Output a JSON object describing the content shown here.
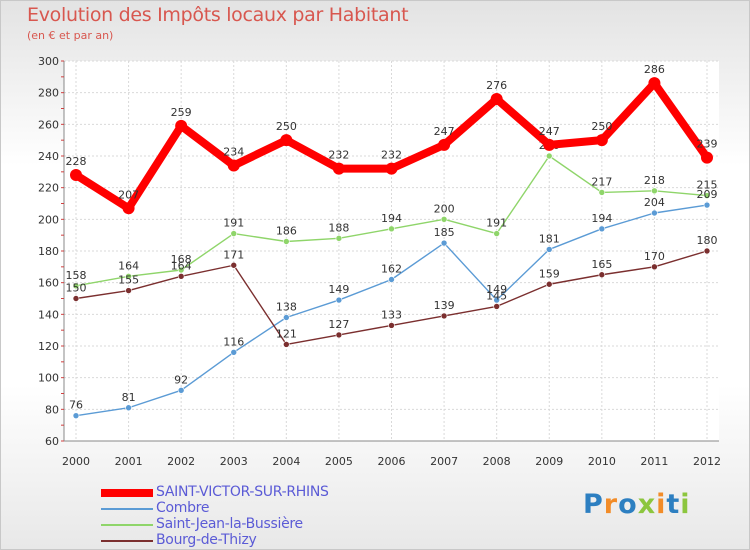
{
  "chart_data": {
    "type": "line",
    "title": "Evolution des Impôts locaux par Habitant",
    "subtitle": "(en € et par an)",
    "categories": [
      "2000",
      "2001",
      "2002",
      "2003",
      "2004",
      "2005",
      "2006",
      "2007",
      "2008",
      "2009",
      "2010",
      "2011",
      "2012"
    ],
    "ylim": [
      60,
      300
    ],
    "yticks": [
      60,
      80,
      100,
      120,
      140,
      160,
      180,
      200,
      220,
      240,
      260,
      280,
      300
    ],
    "grid": true,
    "series": [
      {
        "name": "SAINT-VICTOR-SUR-RHINS",
        "color": "#ff0000",
        "values": [
          228,
          207,
          259,
          234,
          250,
          232,
          232,
          247,
          276,
          247,
          250,
          286,
          239
        ]
      },
      {
        "name": "Combre",
        "color": "#5b9bd5",
        "values": [
          76,
          81,
          92,
          116,
          138,
          149,
          162,
          185,
          149,
          181,
          194,
          204,
          209
        ]
      },
      {
        "name": "Saint-Jean-la-Bussière",
        "color": "#8fd56a",
        "values": [
          158,
          164,
          168,
          191,
          186,
          188,
          194,
          200,
          191,
          240,
          217,
          218,
          215
        ]
      },
      {
        "name": "Bourg-de-Thizy",
        "color": "#7b2f2f",
        "values": [
          150,
          155,
          164,
          171,
          121,
          127,
          133,
          139,
          145,
          159,
          165,
          170,
          180
        ]
      }
    ]
  },
  "logo": {
    "text": "Proxiti",
    "letters": [
      "P",
      "r",
      "o",
      "x",
      "i",
      "t",
      "i"
    ],
    "colors": [
      "#2d7fc1",
      "#f28c28",
      "#2d7fc1",
      "#8cc63e",
      "#f28c28",
      "#2d7fc1",
      "#8cc63e"
    ]
  }
}
